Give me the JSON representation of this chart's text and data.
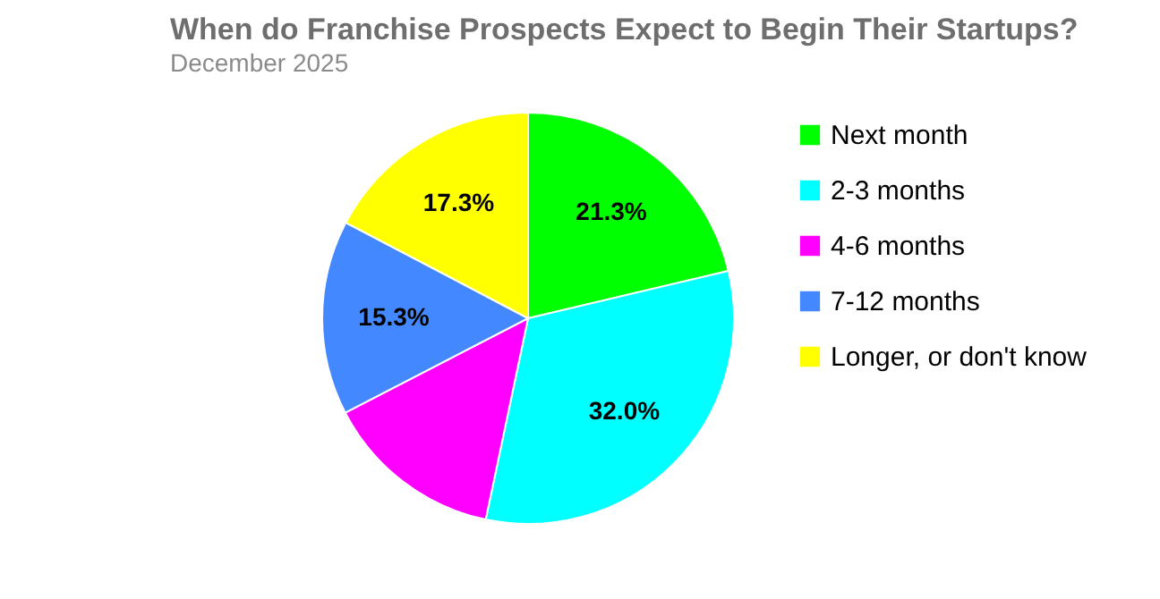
{
  "chart_data": {
    "type": "pie",
    "title": "When do Franchise Prospects Expect to Begin Their Startups?",
    "subtitle": "December 2025",
    "categories": [
      "Next month",
      "2-3 months",
      "4-6 months",
      "7-12 months",
      "Longer, or don't know"
    ],
    "values": [
      21.3,
      32.0,
      14.1,
      15.3,
      17.3
    ],
    "colors": [
      "#00ff00",
      "#00ffff",
      "#ff00ff",
      "#4488ff",
      "#ffff00"
    ],
    "value_labels": [
      "21.3%",
      "32.0%",
      null,
      "15.3%",
      "17.3%"
    ],
    "legend": "right"
  }
}
